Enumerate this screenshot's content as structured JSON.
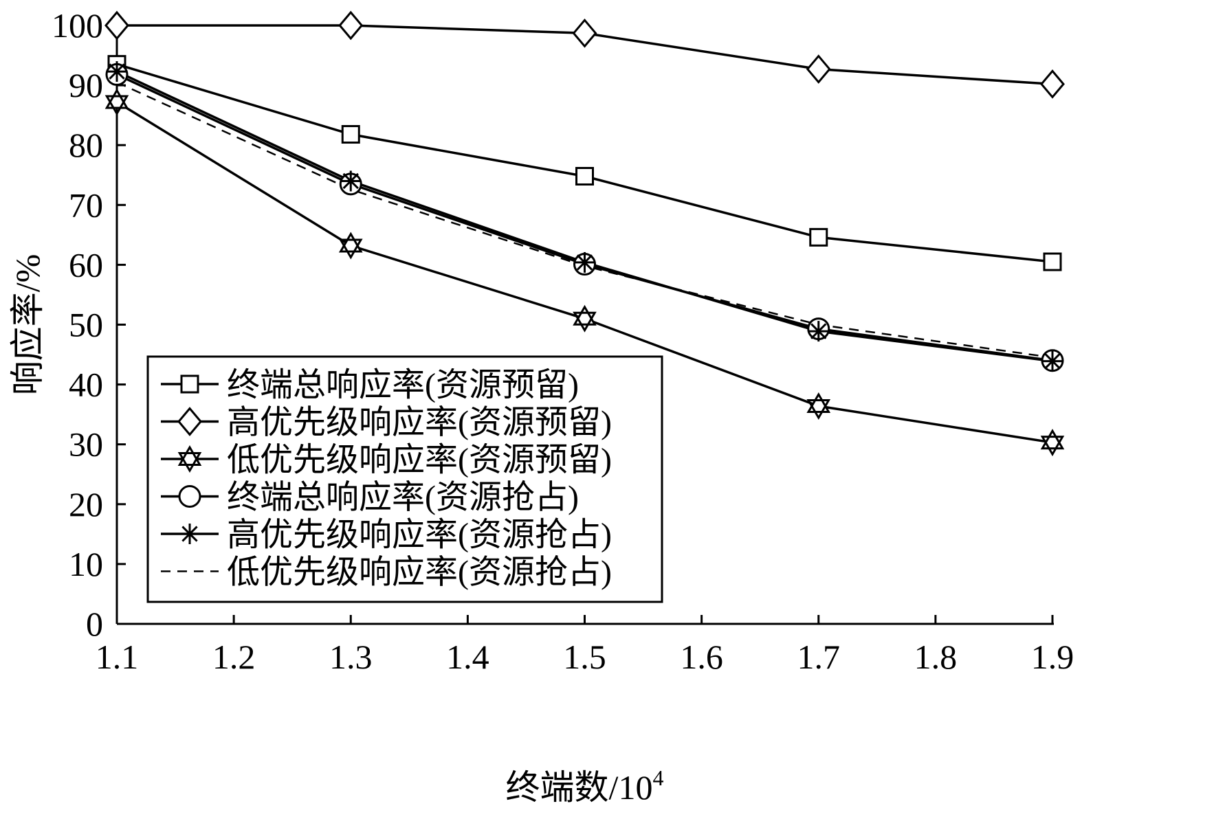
{
  "chart_data": {
    "type": "line",
    "xlabel": "终端数/10",
    "xlabel_sup": "4",
    "ylabel": "响应率/%",
    "x": [
      1.1,
      1.3,
      1.5,
      1.7,
      1.9
    ],
    "xlim": [
      1.1,
      1.9
    ],
    "ylim": [
      0,
      100
    ],
    "x_ticks": [
      "1.1",
      "1.2",
      "1.3",
      "1.4",
      "1.5",
      "1.6",
      "1.7",
      "1.8",
      "1.9"
    ],
    "y_ticks": [
      "0",
      "10",
      "20",
      "30",
      "40",
      "50",
      "60",
      "70",
      "80",
      "90",
      "100"
    ],
    "grid": false,
    "legend_position": "lower-left",
    "series": [
      {
        "name": "终端总响应率(资源预留)",
        "marker": "square",
        "dash": "solid",
        "values": [
          93.5,
          81.8,
          74.8,
          64.6,
          60.5
        ]
      },
      {
        "name": "高优先级响应率(资源预留)",
        "marker": "diamond",
        "dash": "solid",
        "values": [
          100,
          100,
          98.7,
          92.7,
          90.2
        ]
      },
      {
        "name": "低优先级响应率(资源预留)",
        "marker": "star6",
        "dash": "solid",
        "values": [
          87.2,
          63.2,
          51.0,
          36.4,
          30.3
        ]
      },
      {
        "name": "终端总响应率(资源抢占)",
        "marker": "circle",
        "dash": "solid",
        "values": [
          91.8,
          73.5,
          60.1,
          49.3,
          44.0
        ]
      },
      {
        "name": "高优先级响应率(资源抢占)",
        "marker": "asterisk",
        "dash": "solid",
        "values": [
          92.3,
          74.0,
          60.4,
          48.9,
          43.9
        ]
      },
      {
        "name": "低优先级响应率(资源抢占)",
        "marker": "none",
        "dash": "dashed",
        "values": [
          90.5,
          72.6,
          59.8,
          50.0,
          44.5
        ]
      }
    ]
  }
}
